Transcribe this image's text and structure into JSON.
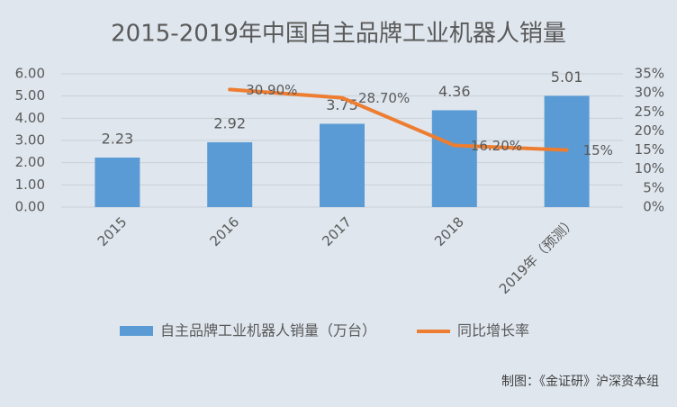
{
  "chart_data": {
    "type": "bar",
    "title": "2015-2019年中国自主品牌工业机器人销量",
    "categories": [
      "2015",
      "2016",
      "2017",
      "2018",
      "2019年（预测）"
    ],
    "series": [
      {
        "name": "自主品牌工业机器人销量（万台）",
        "type": "bar",
        "color": "#5b9bd5",
        "values": [
          2.23,
          2.92,
          3.75,
          4.36,
          5.01
        ]
      },
      {
        "name": "同比增长率",
        "type": "line",
        "axis": "y2",
        "color": "#ed7d31",
        "values": [
          null,
          30.9,
          28.7,
          16.2,
          15
        ],
        "value_labels": [
          null,
          "30.90%",
          "28.70%",
          "16.20%",
          "15%"
        ]
      }
    ],
    "ylim": [
      0,
      6
    ],
    "yticks": [
      {
        "value": 0,
        "label": "0.00"
      },
      {
        "value": 1,
        "label": "1.00"
      },
      {
        "value": 2,
        "label": "2.00"
      },
      {
        "value": 3,
        "label": "3.00"
      },
      {
        "value": 4,
        "label": "4.00"
      },
      {
        "value": 5,
        "label": "5.00"
      },
      {
        "value": 6,
        "label": "6.00"
      }
    ],
    "y2lim": [
      0,
      35
    ],
    "y2ticks": [
      {
        "value": 0,
        "label": "0%"
      },
      {
        "value": 5,
        "label": "5%"
      },
      {
        "value": 10,
        "label": "10%"
      },
      {
        "value": 15,
        "label": "15%"
      },
      {
        "value": 20,
        "label": "20%"
      },
      {
        "value": 25,
        "label": "25%"
      },
      {
        "value": 30,
        "label": "30%"
      },
      {
        "value": 35,
        "label": "35%"
      }
    ],
    "grid": true,
    "legend": "bottom",
    "source": "制图：《金证研》沪深资本组"
  }
}
